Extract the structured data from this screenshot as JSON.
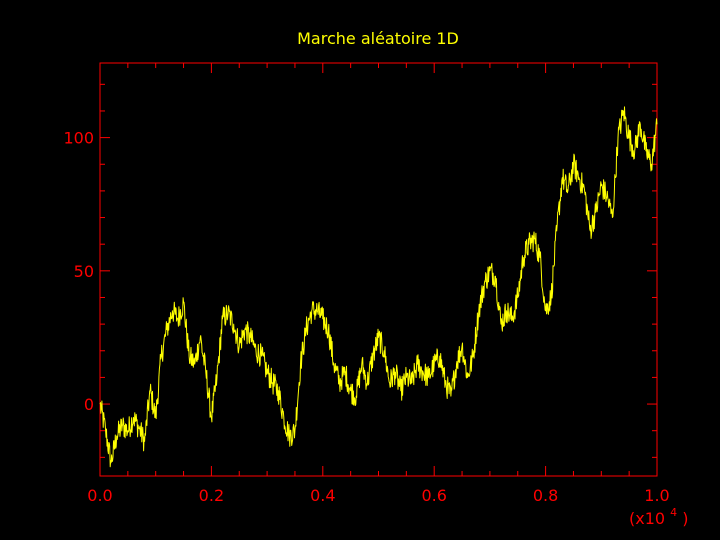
{
  "colors": {
    "background": "#000000",
    "axes": "#ff0000",
    "series": "#ffff00",
    "title": "#ffff00"
  },
  "chart_data": {
    "type": "line",
    "title": "Marche aléatoire 1D",
    "xlabel": "",
    "ylabel": "",
    "x_multiplier": {
      "prefix": "(x10",
      "exponent": "4",
      "suffix": ")"
    },
    "xlim": [
      0,
      1.0
    ],
    "ylim": [
      -27,
      128
    ],
    "x_ticks": [
      0.0,
      0.2,
      0.4,
      0.6,
      0.8,
      1.0
    ],
    "x_tick_labels": [
      "0.0",
      "0.2",
      "0.4",
      "0.6",
      "0.8",
      "1.0"
    ],
    "y_ticks": [
      0,
      50,
      100
    ],
    "y_tick_labels": [
      "0",
      "50",
      "100"
    ],
    "x_minor_step": 0.05,
    "y_minor_step": 10,
    "grid": false,
    "series": [
      {
        "x": [
          0.0,
          0.01,
          0.02,
          0.03,
          0.04,
          0.05,
          0.06,
          0.07,
          0.08,
          0.09,
          0.1,
          0.11,
          0.12,
          0.13,
          0.14,
          0.15,
          0.16,
          0.17,
          0.18,
          0.19,
          0.2,
          0.21,
          0.22,
          0.23,
          0.24,
          0.25,
          0.26,
          0.27,
          0.28,
          0.29,
          0.3,
          0.31,
          0.32,
          0.33,
          0.34,
          0.35,
          0.36,
          0.37,
          0.38,
          0.39,
          0.4,
          0.41,
          0.42,
          0.43,
          0.44,
          0.45,
          0.46,
          0.47,
          0.48,
          0.49,
          0.5,
          0.51,
          0.52,
          0.53,
          0.54,
          0.55,
          0.56,
          0.57,
          0.58,
          0.59,
          0.6,
          0.61,
          0.62,
          0.63,
          0.64,
          0.65,
          0.66,
          0.67,
          0.68,
          0.69,
          0.7,
          0.71,
          0.72,
          0.73,
          0.74,
          0.75,
          0.76,
          0.77,
          0.78,
          0.79,
          0.8,
          0.81,
          0.82,
          0.83,
          0.84,
          0.85,
          0.86,
          0.87,
          0.88,
          0.89,
          0.9,
          0.91,
          0.92,
          0.93,
          0.94,
          0.95,
          0.96,
          0.97,
          0.98,
          0.99,
          1.0
        ],
        "values": [
          0,
          -10,
          -22,
          -12,
          -8,
          -10,
          -5,
          -9,
          -14,
          5,
          -5,
          18,
          28,
          35,
          32,
          38,
          18,
          15,
          25,
          12,
          -5,
          10,
          32,
          34,
          30,
          22,
          28,
          25,
          20,
          18,
          12,
          8,
          5,
          -5,
          -12,
          -10,
          15,
          28,
          35,
          35,
          32,
          28,
          15,
          8,
          12,
          5,
          3,
          15,
          8,
          18,
          25,
          20,
          8,
          12,
          5,
          10,
          8,
          15,
          12,
          10,
          15,
          18,
          8,
          3,
          15,
          22,
          10,
          18,
          35,
          45,
          50,
          48,
          30,
          35,
          32,
          40,
          55,
          60,
          62,
          55,
          35,
          40,
          65,
          85,
          80,
          90,
          85,
          80,
          65,
          72,
          82,
          78,
          70,
          100,
          110,
          100,
          95,
          105,
          95,
          90,
          105
        ]
      }
    ]
  }
}
